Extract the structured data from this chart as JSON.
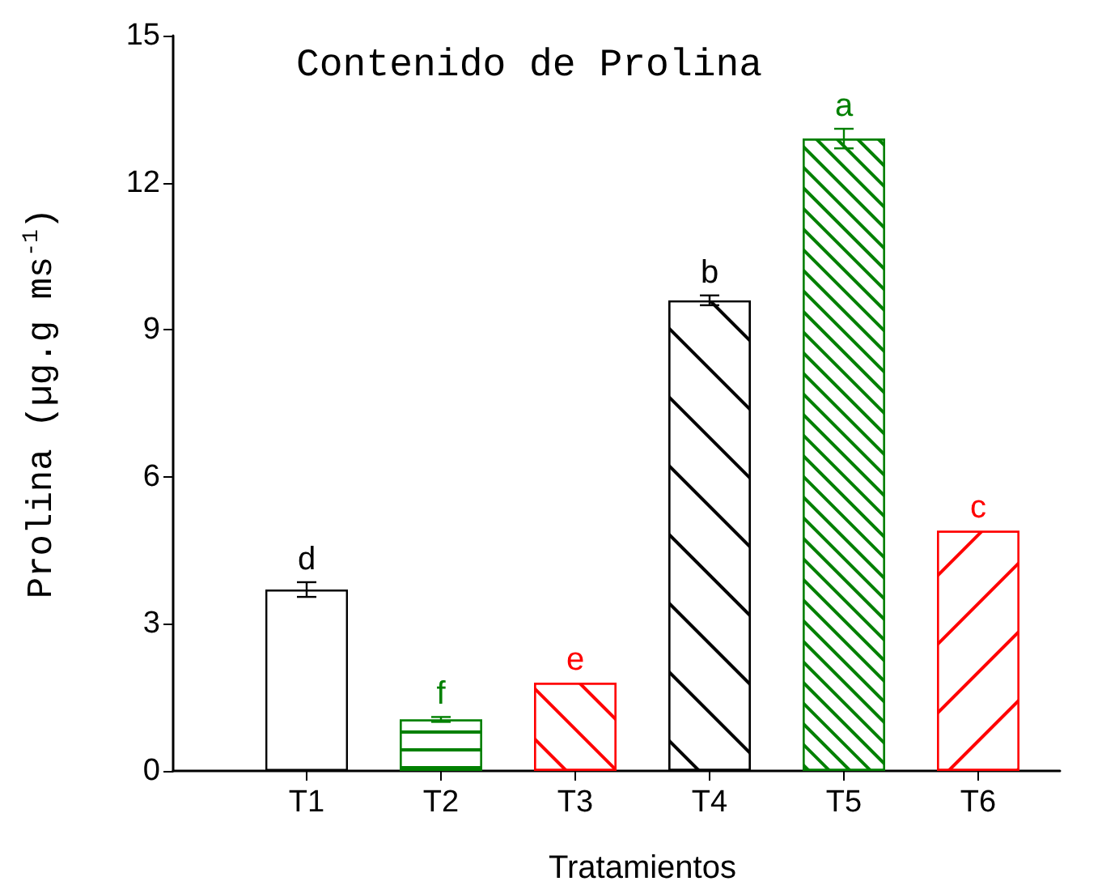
{
  "chart_data": {
    "type": "bar",
    "title": "Contenido de Prolina",
    "xlabel": "Tratamientos",
    "ylabel": "Prolina (µg.g ms$^{-1}$)",
    "categories": [
      "T1",
      "T2",
      "T3",
      "T4",
      "T5",
      "T6"
    ],
    "values": [
      3.7,
      1.05,
      1.8,
      9.6,
      12.9,
      4.9
    ],
    "errors": [
      0.15,
      0.05,
      null,
      0.1,
      0.2,
      null
    ],
    "colors": [
      "#000000",
      "#008000",
      "#ff0000",
      "#000000",
      "#008000",
      "#ff0000"
    ],
    "value_labels": [
      "d",
      "f",
      "e",
      "b",
      "a",
      "c"
    ],
    "ylim": [
      0,
      15
    ],
    "yticks": [
      0,
      3,
      6,
      9,
      12,
      15
    ]
  }
}
